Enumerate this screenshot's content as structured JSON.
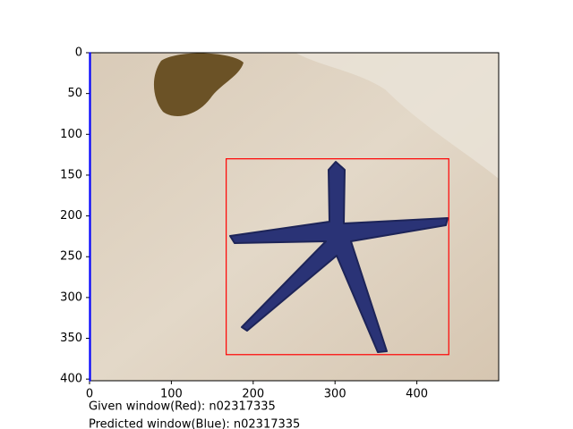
{
  "chart_data": {
    "type": "image",
    "xlim": [
      0,
      500
    ],
    "ylim": [
      402,
      0
    ],
    "xticks": [
      0,
      100,
      200,
      300,
      400
    ],
    "yticks": [
      0,
      50,
      100,
      150,
      200,
      250,
      300,
      350,
      400
    ],
    "boxes": [
      {
        "label": "Given window(Red): n02317335",
        "color": "#ff0000",
        "x": [
          167,
          439
        ],
        "y": [
          130,
          370
        ]
      },
      {
        "label": "Predicted window(Blue): n02317335",
        "color": "#0000ff",
        "x": [
          0,
          0
        ],
        "y": [
          0,
          402
        ]
      }
    ]
  }
}
